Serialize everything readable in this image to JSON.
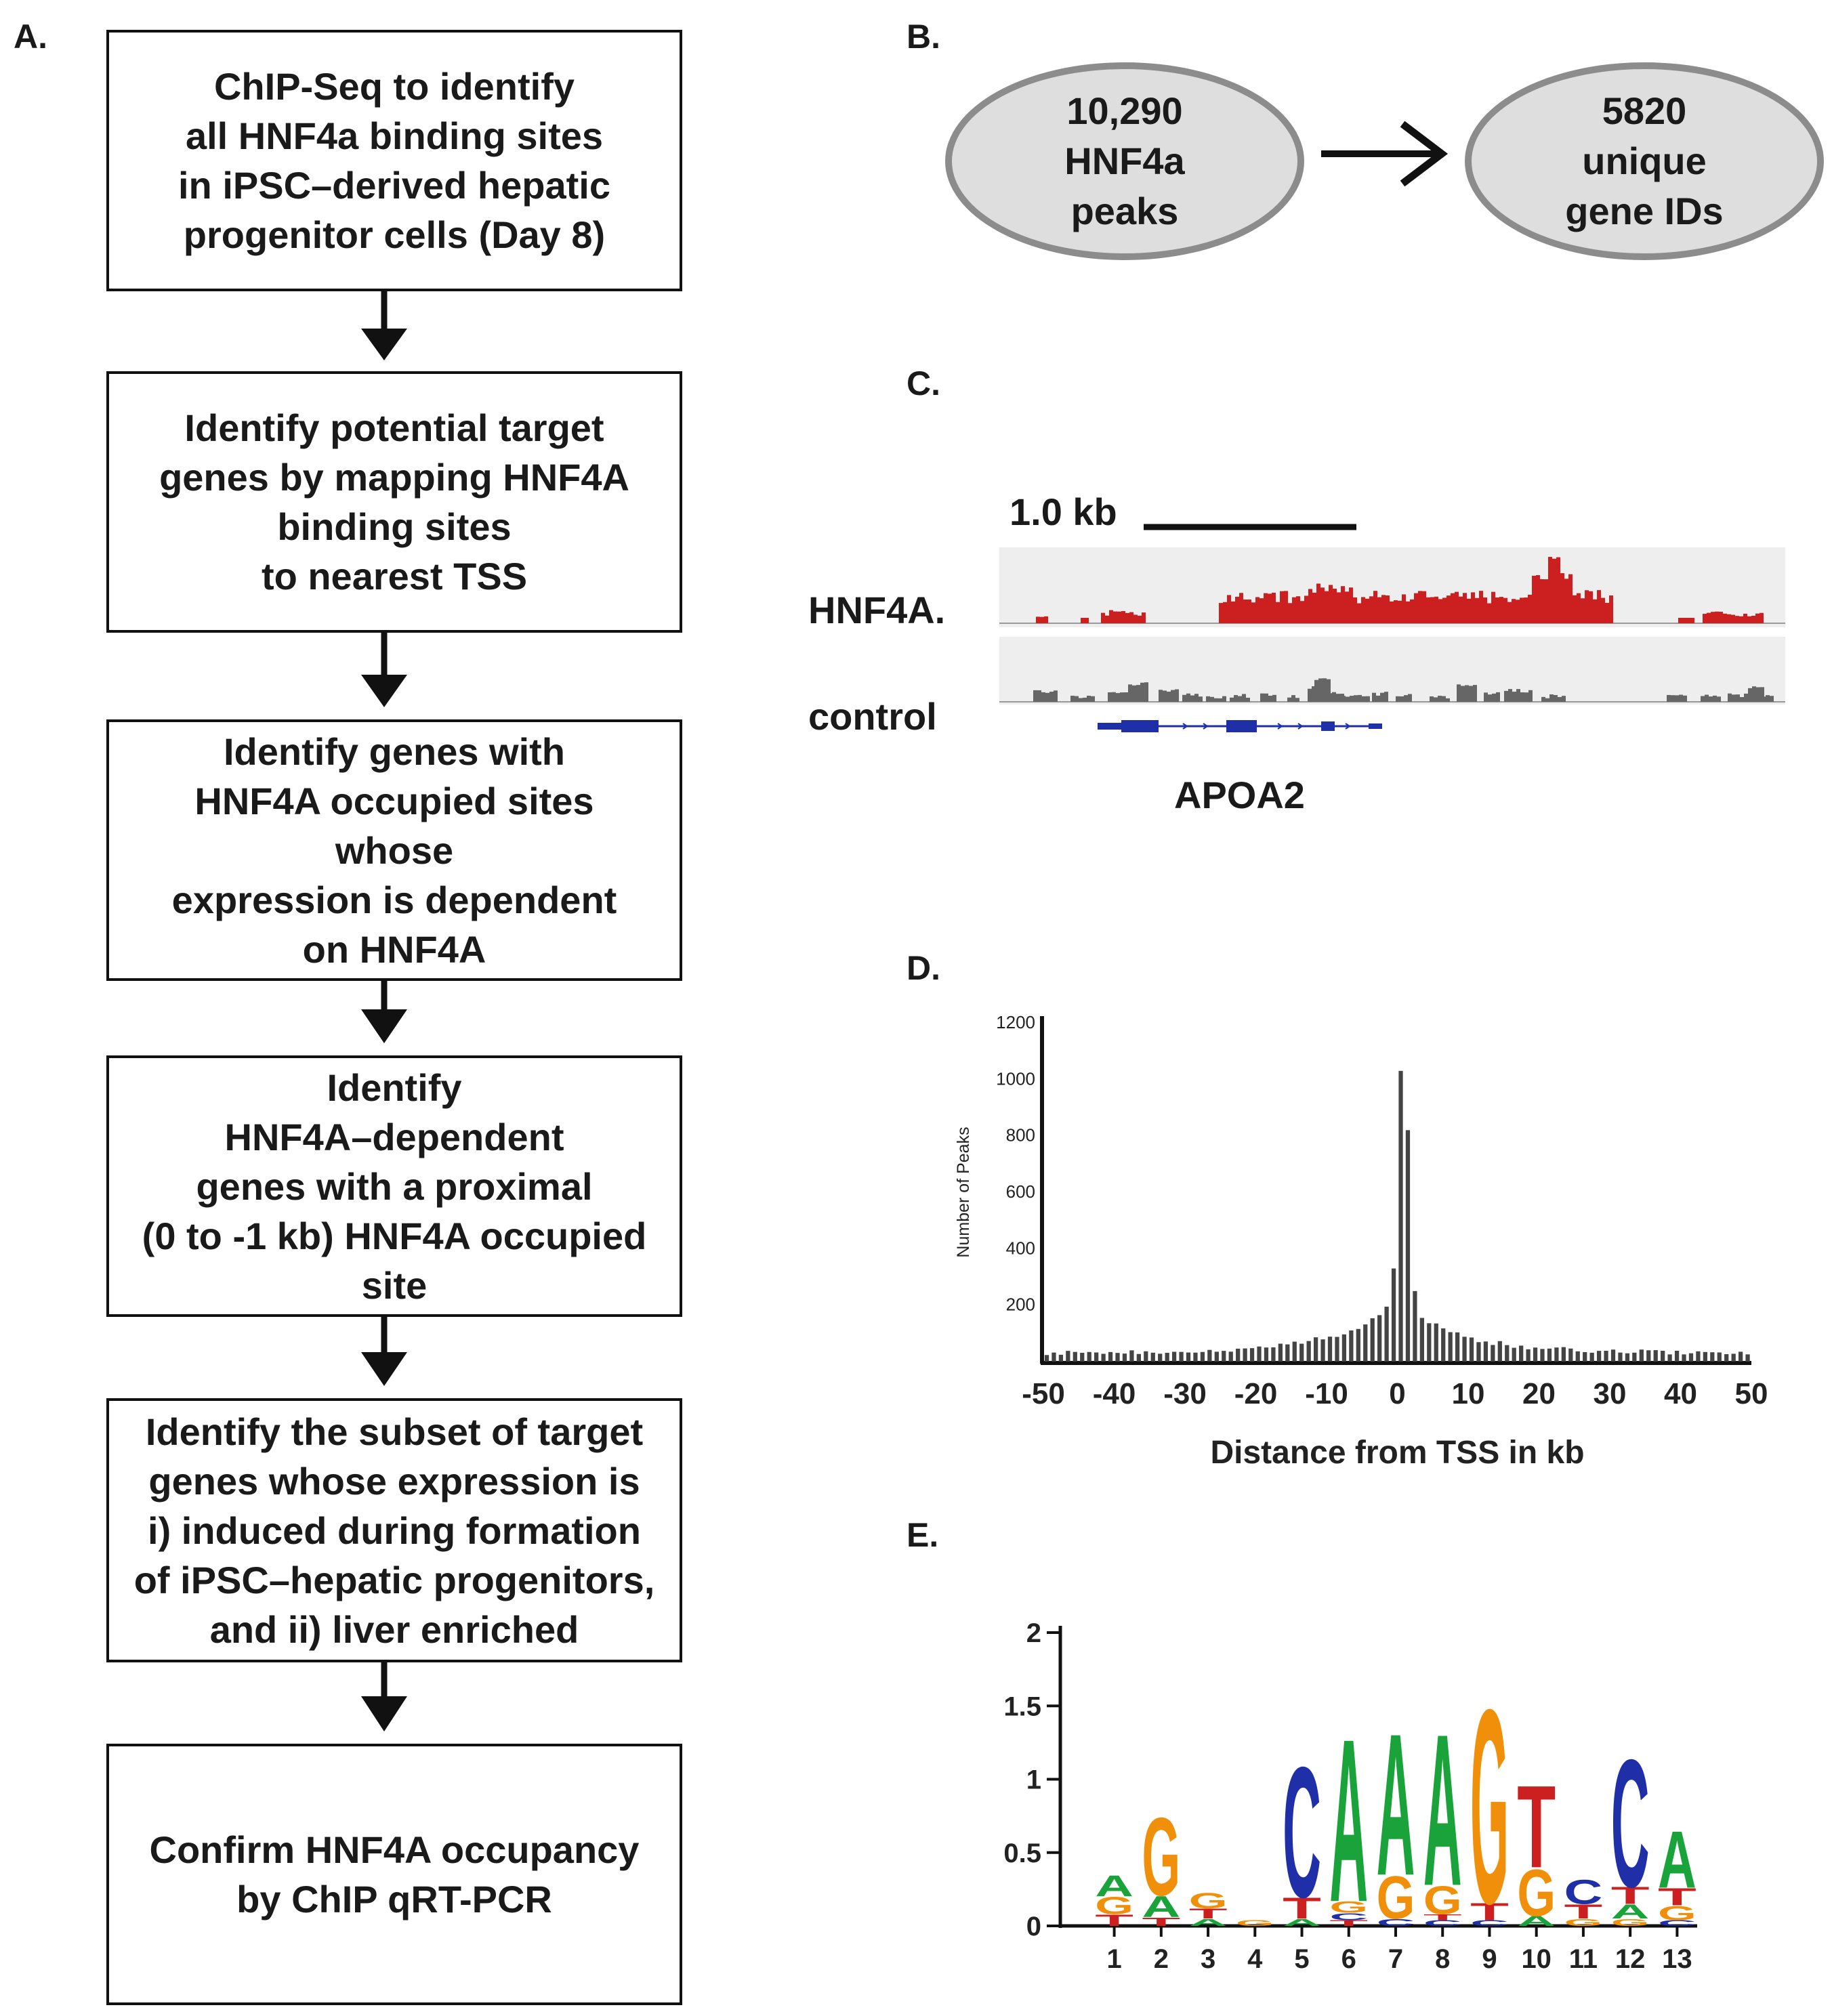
{
  "panels": {
    "a": "A.",
    "b": "B.",
    "c": "C.",
    "d": "D.",
    "e": "E."
  },
  "flowchart": {
    "steps": [
      "ChIP-Seq to identify\nall HNF4a binding sites\nin iPSC–derived hepatic\nprogenitor cells (Day 8)",
      "Identify potential target\ngenes by mapping HNF4A\nbinding sites\nto nearest TSS",
      "Identify genes with\nHNF4A occupied sites\nwhose\nexpression is dependent\non HNF4A",
      "Identify\nHNF4A–dependent\ngenes with a proximal\n(0 to -1 kb) HNF4A occupied\nsite",
      "Identify the subset of target\ngenes whose expression is\ni) induced during formation\nof iPSC–hepatic progenitors,\nand ii) liver enriched",
      "Confirm HNF4A occupancy\nby ChIP qRT-PCR"
    ]
  },
  "panel_b": {
    "left": "10,290\nHNF4a\npeaks",
    "right": "5820\nunique\ngene IDs",
    "fill_color": "#dedede",
    "border_color": "#8c8c8c"
  },
  "panel_c": {
    "scale_label": "1.0 kb",
    "track_labels": [
      "HNF4A.",
      "control"
    ],
    "gene": "APOA2",
    "colors": {
      "hnf4a": "#cc1f1f",
      "control": "#666666",
      "gene": "#1f2fa8",
      "track_bg": "#eeeeee"
    }
  },
  "chart_data": [
    {
      "type": "bar",
      "title": "",
      "xlabel": "Distance from TSS in kb",
      "ylabel": "Number of Peaks",
      "xlim": [
        -50,
        50
      ],
      "ylim": [
        0,
        1200
      ],
      "xticks": [
        "-50",
        "-40",
        "-30",
        "-20",
        "-10",
        "0",
        "10",
        "20",
        "30",
        "40",
        "50"
      ],
      "yticks": [
        "200",
        "400",
        "600",
        "800",
        "1000",
        "1200"
      ],
      "bin_width_kb": 1,
      "peak_values": {
        "-1": 330,
        "0": 1030,
        "1": 820,
        "2": 250
      },
      "baseline_far": 30,
      "baseline_near": 200,
      "bar_color": "#444444"
    },
    {
      "type": "sequence-logo",
      "ylim": [
        0,
        2
      ],
      "yticks": [
        "0",
        "0.5",
        "1",
        "1.5",
        "2"
      ],
      "xlabel": "",
      "ylabel": "",
      "positions": [
        "1",
        "2",
        "3",
        "4",
        "5",
        "6",
        "7",
        "8",
        "9",
        "10",
        "11",
        "12",
        "13"
      ],
      "colors": {
        "A": "#1aa33a",
        "C": "#1f2fa8",
        "G": "#f0900a",
        "T": "#cc1f1f"
      },
      "letters": [
        [
          {
            "base": "T",
            "height": 0.08
          },
          {
            "base": "G",
            "height": 0.12
          },
          {
            "base": "A",
            "height": 0.15
          }
        ],
        [
          {
            "base": "T",
            "height": 0.06
          },
          {
            "base": "A",
            "height": 0.15
          },
          {
            "base": "G",
            "height": 0.55
          }
        ],
        [
          {
            "base": "A",
            "height": 0.05
          },
          {
            "base": "T",
            "height": 0.07
          },
          {
            "base": "G",
            "height": 0.11
          }
        ],
        [
          {
            "base": "G",
            "height": 0.04
          }
        ],
        [
          {
            "base": "A",
            "height": 0.05
          },
          {
            "base": "T",
            "height": 0.15
          },
          {
            "base": "C",
            "height": 0.92
          }
        ],
        [
          {
            "base": "T",
            "height": 0.04
          },
          {
            "base": "C",
            "height": 0.05
          },
          {
            "base": "G",
            "height": 0.08
          },
          {
            "base": "A",
            "height": 1.15
          }
        ],
        [
          {
            "base": "C",
            "height": 0.05
          },
          {
            "base": "G",
            "height": 0.3
          },
          {
            "base": "A",
            "height": 1.0
          }
        ],
        [
          {
            "base": "C",
            "height": 0.04
          },
          {
            "base": "T",
            "height": 0.04
          },
          {
            "base": "G",
            "height": 0.2
          },
          {
            "base": "A",
            "height": 1.07
          }
        ],
        [
          {
            "base": "C",
            "height": 0.04
          },
          {
            "base": "T",
            "height": 0.12
          },
          {
            "base": "G",
            "height": 1.37
          }
        ],
        [
          {
            "base": "A",
            "height": 0.07
          },
          {
            "base": "G",
            "height": 0.33
          },
          {
            "base": "T",
            "height": 0.58
          }
        ],
        [
          {
            "base": "G",
            "height": 0.05
          },
          {
            "base": "T",
            "height": 0.1
          },
          {
            "base": "C",
            "height": 0.17
          }
        ],
        [
          {
            "base": "G",
            "height": 0.05
          },
          {
            "base": "A",
            "height": 0.1
          },
          {
            "base": "T",
            "height": 0.12
          },
          {
            "base": "C",
            "height": 0.9
          }
        ],
        [
          {
            "base": "C",
            "height": 0.04
          },
          {
            "base": "G",
            "height": 0.1
          },
          {
            "base": "T",
            "height": 0.12
          },
          {
            "base": "A",
            "height": 0.4
          }
        ]
      ]
    }
  ]
}
